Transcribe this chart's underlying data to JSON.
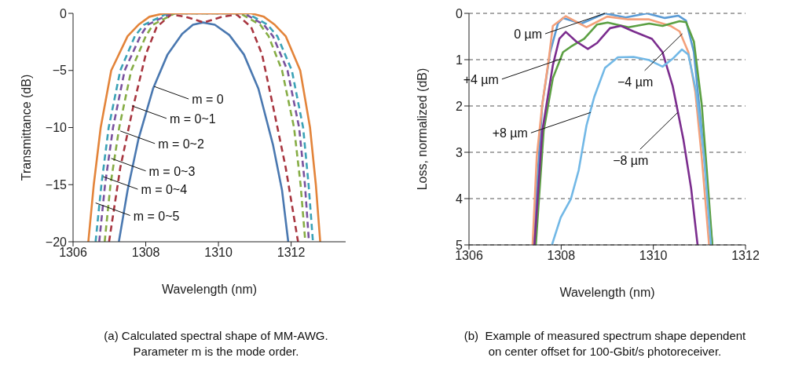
{
  "chart_data": [
    {
      "type": "line",
      "xlabel": "Wavelength (nm)",
      "ylabel": "Transmittance (dB)",
      "xlim": [
        1306,
        1313.5
      ],
      "xticks": [
        1306,
        1308,
        1310,
        1312
      ],
      "ylim": [
        -20,
        0
      ],
      "yticks": [
        0,
        -5,
        -10,
        -15,
        -20
      ],
      "series": [
        {
          "color": "#4a78b0",
          "line_style": "solid",
          "x": [
            1307.26,
            1307.5,
            1307.8,
            1308.2,
            1308.6,
            1309.0,
            1309.3,
            1309.57,
            1309.9,
            1310.3,
            1310.7,
            1311.1,
            1311.5,
            1311.75,
            1311.92
          ],
          "values": [
            -20,
            -15.5,
            -11,
            -6.6,
            -3.6,
            -1.8,
            -1.0,
            -0.8,
            -1.0,
            -1.9,
            -3.6,
            -6.6,
            -11.5,
            -15.5,
            -20
          ]
        },
        {
          "color": "#a8353f",
          "line_style": "dashed",
          "x": [
            1306.99,
            1307.3,
            1307.66,
            1308.0,
            1308.3,
            1308.7,
            1309.1,
            1309.6,
            1310.1,
            1310.5,
            1310.9,
            1311.2,
            1311.5,
            1311.85,
            1312.19
          ],
          "values": [
            -20,
            -13.5,
            -8.1,
            -3.6,
            -1.2,
            -0.1,
            -0.3,
            -0.8,
            -0.3,
            -0.1,
            -1.2,
            -3.6,
            -8.1,
            -13.5,
            -20
          ]
        },
        {
          "color": "#86ad45",
          "line_style": "dashed",
          "x": [
            1306.87,
            1307.03,
            1307.27,
            1307.6,
            1308.0,
            1308.2,
            1308.8,
            1310.6,
            1311.15,
            1311.38,
            1311.75,
            1312.08,
            1312.26,
            1312.39
          ],
          "values": [
            -20,
            -15,
            -10,
            -5,
            -2,
            -1,
            0,
            0,
            -1,
            -2,
            -5,
            -10,
            -15,
            -20
          ]
        },
        {
          "color": "#7a529e",
          "line_style": "dashed",
          "x": [
            1306.72,
            1306.88,
            1307.1,
            1307.42,
            1307.85,
            1308.05,
            1308.7,
            1310.7,
            1311.25,
            1311.5,
            1311.9,
            1312.22,
            1312.38,
            1312.49
          ],
          "values": [
            -20,
            -15,
            -10,
            -5,
            -2,
            -1,
            0,
            0,
            -1,
            -2,
            -5,
            -10,
            -15,
            -20
          ]
        },
        {
          "color": "#3aa2b6",
          "line_style": "dashed",
          "x": [
            1306.62,
            1306.78,
            1306.98,
            1307.3,
            1307.7,
            1307.95,
            1308.6,
            1310.8,
            1311.35,
            1311.62,
            1312.02,
            1312.33,
            1312.48,
            1312.6
          ],
          "values": [
            -20,
            -15,
            -10,
            -5,
            -2,
            -1,
            0,
            0,
            -1,
            -2,
            -5,
            -10,
            -15,
            -20
          ]
        },
        {
          "color": "#e3843a",
          "line_style": "solid",
          "x": [
            1306.42,
            1306.57,
            1306.76,
            1307.05,
            1307.5,
            1307.8,
            1308.1,
            1308.5,
            1310.9,
            1311.25,
            1311.55,
            1311.85,
            1312.25,
            1312.52,
            1312.68,
            1312.8
          ],
          "values": [
            -20,
            -15,
            -10,
            -5,
            -2,
            -1,
            -0.3,
            0,
            0,
            -0.3,
            -1,
            -2,
            -5,
            -10,
            -15,
            -20
          ]
        }
      ],
      "annotations": [
        {
          "text": "m = 0",
          "x": 1308.23,
          "y": -6.4
        },
        {
          "text": "m = 0~1",
          "x": 1307.62,
          "y": -8.1
        },
        {
          "text": "m = 0~2",
          "x": 1307.3,
          "y": -10.3
        },
        {
          "text": "m = 0~3",
          "x": 1307.05,
          "y": -12.7
        },
        {
          "text": "m = 0~4",
          "x": 1306.83,
          "y": -14.3
        },
        {
          "text": "m = 0~5",
          "x": 1306.62,
          "y": -16.6
        },
        "(a) Calculated spectral shape of MM-AWG.",
        "Parameter m is the mode order."
      ]
    },
    {
      "type": "line",
      "xlabel": "Wavelength (nm)",
      "ylabel": "Loss, normalized (dB)",
      "xlim": [
        1306,
        1312
      ],
      "xticks": [
        1306,
        1308,
        1310,
        1312
      ],
      "ylim": [
        5,
        0
      ],
      "yticks": [
        0,
        1,
        2,
        3,
        4,
        5
      ],
      "grid": "y",
      "series": [
        {
          "color": "#5b9bd5",
          "x": [
            1307.39,
            1307.59,
            1307.76,
            1307.93,
            1308.04,
            1308.44,
            1308.95,
            1309.4,
            1309.86,
            1310.25,
            1310.54,
            1310.71,
            1310.88,
            1311.05,
            1311.28
          ],
          "values": [
            5,
            1.97,
            0.84,
            0.22,
            0.1,
            0.22,
            0,
            0.09,
            0,
            0.1,
            0.05,
            0.16,
            0.84,
            2.54,
            5
          ]
        },
        {
          "color": "#f4a07a",
          "x": [
            1307.38,
            1307.47,
            1307.59,
            1307.73,
            1307.82,
            1308.1,
            1308.55,
            1309.0,
            1309.46,
            1309.91,
            1310.37,
            1310.57,
            1310.76,
            1310.91,
            1311.05,
            1311.21
          ],
          "values": [
            5,
            3.1,
            1.97,
            1.0,
            0.27,
            0.06,
            0.3,
            0.07,
            0.13,
            0.13,
            0.27,
            0.39,
            0.84,
            1.69,
            3.1,
            5
          ]
        },
        {
          "color": "#5ca043",
          "x": [
            1307.45,
            1307.62,
            1307.82,
            1308.04,
            1308.21,
            1308.5,
            1308.78,
            1309.01,
            1309.46,
            1309.91,
            1310.2,
            1310.57,
            1310.71,
            1310.88,
            1311.05,
            1311.16,
            1311.28
          ],
          "values": [
            5,
            2.54,
            1.4,
            0.84,
            0.72,
            0.55,
            0.24,
            0.2,
            0.3,
            0.22,
            0.27,
            0.17,
            0.19,
            0.61,
            1.97,
            3.39,
            5
          ]
        },
        {
          "color": "#7b2d8e",
          "x": [
            1307.42,
            1307.59,
            1307.82,
            1307.96,
            1308.1,
            1308.33,
            1308.58,
            1308.78,
            1309.06,
            1309.29,
            1309.57,
            1309.97,
            1310.2,
            1310.42,
            1310.65,
            1310.82,
            1310.96
          ],
          "values": [
            5,
            2.54,
            1.12,
            0.55,
            0.4,
            0.61,
            0.77,
            0.64,
            0.32,
            0.27,
            0.39,
            0.55,
            0.84,
            1.57,
            2.71,
            3.78,
            5
          ]
        },
        {
          "color": "#72b8e6",
          "x": [
            1307.8,
            1307.99,
            1308.21,
            1308.38,
            1308.55,
            1308.72,
            1308.95,
            1309.23,
            1309.57,
            1309.91,
            1310.2,
            1310.42,
            1310.62,
            1310.76,
            1310.93,
            1311.1,
            1311.25
          ],
          "values": [
            5,
            4.41,
            4.01,
            3.39,
            2.42,
            1.8,
            1.18,
            0.95,
            0.94,
            1.01,
            1.15,
            0.98,
            0.78,
            0.89,
            1.69,
            3.1,
            5
          ]
        }
      ],
      "annotations": [
        {
          "text": "0 µm",
          "x": 1308.95,
          "y": 0
        },
        {
          "text": "+4 µm",
          "x": 1308.01,
          "y": 0.98
        },
        {
          "text": "−4 µm",
          "x": 1310.63,
          "y": 0.44
        },
        {
          "text": "+8 µm",
          "x": 1308.64,
          "y": 2.14
        },
        {
          "text": "−8 µm",
          "x": 1310.53,
          "y": 2.14
        },
        "(b)  Example of measured spectrum shape dependent",
        "on center offset for 100-Gbit/s photoreceiver."
      ]
    }
  ]
}
